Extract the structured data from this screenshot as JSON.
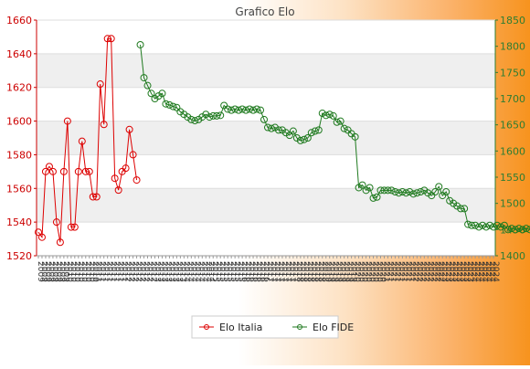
{
  "chart_data": {
    "type": "line",
    "title": "Grafico Elo",
    "legend_position": "bottom-center",
    "grid": true,
    "left_axis": {
      "ylim": [
        1520,
        1660
      ],
      "ticks": [
        1520,
        1540,
        1560,
        1580,
        1600,
        1620,
        1640,
        1660
      ],
      "color": "#cc0000"
    },
    "right_axis": {
      "ylim": [
        1400,
        1850
      ],
      "ticks": [
        1400,
        1450,
        1500,
        1550,
        1600,
        1650,
        1700,
        1750,
        1800,
        1850
      ],
      "color": "#2e7d32"
    },
    "x_points": 126,
    "series": [
      {
        "name": "Elo Italia",
        "axis": "left",
        "color": "#dd0000",
        "start_index": 0,
        "values": [
          1534,
          1531,
          1570,
          1573,
          1570,
          1540,
          1528,
          1570,
          1600,
          1537,
          1537,
          1570,
          1588,
          1570,
          1570,
          1555,
          1555,
          1622,
          1598,
          1649,
          1649,
          1566,
          1559,
          1570,
          1572,
          1595,
          1580,
          1565
        ]
      },
      {
        "name": "Elo FIDE",
        "axis": "right",
        "color": "#1f7a1f",
        "start_index": 28,
        "values": [
          1803,
          1740,
          1725,
          1710,
          1700,
          1705,
          1710,
          1690,
          1688,
          1685,
          1683,
          1675,
          1670,
          1665,
          1660,
          1658,
          1660,
          1665,
          1670,
          1665,
          1667,
          1667,
          1668,
          1687,
          1680,
          1678,
          1680,
          1678,
          1680,
          1678,
          1680,
          1678,
          1680,
          1678,
          1660,
          1645,
          1643,
          1645,
          1640,
          1640,
          1635,
          1630,
          1638,
          1625,
          1620,
          1622,
          1625,
          1635,
          1638,
          1640,
          1672,
          1668,
          1670,
          1667,
          1655,
          1657,
          1643,
          1640,
          1633,
          1627,
          1530,
          1535,
          1525,
          1530,
          1510,
          1512,
          1525,
          1525,
          1525,
          1525,
          1522,
          1520,
          1522,
          1520,
          1522,
          1518,
          1520,
          1522,
          1525,
          1520,
          1515,
          1522,
          1532,
          1515,
          1522,
          1505,
          1500,
          1495,
          1490,
          1490,
          1460,
          1458,
          1458,
          1455,
          1458,
          1455,
          1458,
          1455,
          1458,
          1455,
          1458,
          1450,
          1452,
          1450,
          1452,
          1450,
          1452,
          1450,
          1452
        ]
      }
    ],
    "x_label_sample": [
      "2009",
      "2010",
      "2011",
      "2012",
      "2013",
      "2014",
      "2015",
      "2016",
      "2017",
      "2018",
      "2019",
      "2020",
      "2021",
      "2022",
      "2023",
      "2024"
    ]
  }
}
